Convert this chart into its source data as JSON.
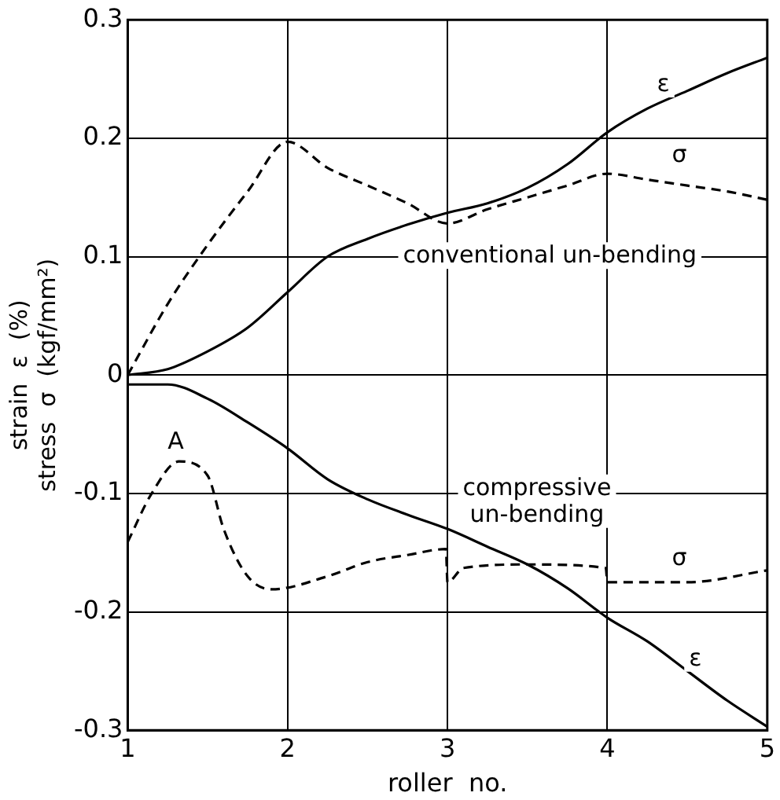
{
  "chart_data": {
    "type": "line",
    "xlabel": "roller  no.",
    "ylabel": "strain  ε  (%)\nstress  σ  (kgf/mm²)",
    "xlim": [
      1,
      5
    ],
    "xticks": [
      1,
      2,
      3,
      4,
      5
    ],
    "ylim": [
      -0.3,
      0.3
    ],
    "yticks": [
      -0.3,
      -0.2,
      -0.1,
      0,
      0.1,
      0.2,
      0.3
    ],
    "grid": true,
    "legend": false,
    "marker": "none",
    "series": [
      {
        "color": "#000000",
        "line_style": "solid",
        "x": [
          1,
          1.25,
          1.5,
          1.75,
          2,
          2.25,
          2.5,
          2.75,
          3,
          3.25,
          3.5,
          3.75,
          4,
          4.25,
          4.5,
          4.75,
          5
        ],
        "values": [
          0,
          0.005,
          0.02,
          0.04,
          0.07,
          0.1,
          0.115,
          0.127,
          0.137,
          0.145,
          0.158,
          0.178,
          0.205,
          0.225,
          0.24,
          0.255,
          0.268
        ]
      },
      {
        "color": "#000000",
        "line_style": "dashed",
        "x": [
          1,
          1.25,
          1.5,
          1.75,
          2,
          2.25,
          2.5,
          2.75,
          3,
          3.25,
          3.5,
          3.75,
          4,
          4.25,
          4.5,
          4.75,
          5
        ],
        "values": [
          0,
          0.06,
          0.11,
          0.155,
          0.197,
          0.175,
          0.16,
          0.145,
          0.128,
          0.14,
          0.15,
          0.16,
          0.17,
          0.165,
          0.16,
          0.155,
          0.148
        ]
      },
      {
        "color": "#000000",
        "line_style": "solid",
        "x": [
          1,
          1.25,
          1.5,
          1.75,
          2,
          2.25,
          2.5,
          2.75,
          3,
          3.25,
          3.5,
          3.75,
          4,
          4.25,
          4.5,
          4.75,
          5
        ],
        "values": [
          -0.008,
          -0.008,
          -0.02,
          -0.04,
          -0.062,
          -0.088,
          -0.105,
          -0.118,
          -0.13,
          -0.145,
          -0.16,
          -0.18,
          -0.205,
          -0.225,
          -0.25,
          -0.275,
          -0.297
        ]
      },
      {
        "color": "#000000",
        "line_style": "dashed",
        "x": [
          1,
          1.15,
          1.32,
          1.5,
          1.6,
          1.75,
          1.9,
          2.25,
          2.5,
          2.75,
          2.99,
          3,
          3.1,
          3.5,
          3.99,
          4,
          4.5,
          5
        ],
        "values": [
          -0.141,
          -0.1,
          -0.073,
          -0.085,
          -0.13,
          -0.17,
          -0.181,
          -0.17,
          -0.158,
          -0.152,
          -0.147,
          -0.175,
          -0.163,
          -0.16,
          -0.163,
          -0.175,
          -0.175,
          -0.165
        ]
      }
    ],
    "annotations": [
      {
        "text": "ε",
        "x": 4.35,
        "y": 0.245
      },
      {
        "text": "σ",
        "x": 4.45,
        "y": 0.185
      },
      "conventional un-bending",
      {
        "text": "A",
        "x": 1.3,
        "y": -0.057
      },
      "compressive\nun-bending",
      {
        "text": "σ",
        "x": 4.45,
        "y": -0.155
      },
      {
        "text": "ε",
        "x": 4.55,
        "y": -0.24
      }
    ]
  }
}
